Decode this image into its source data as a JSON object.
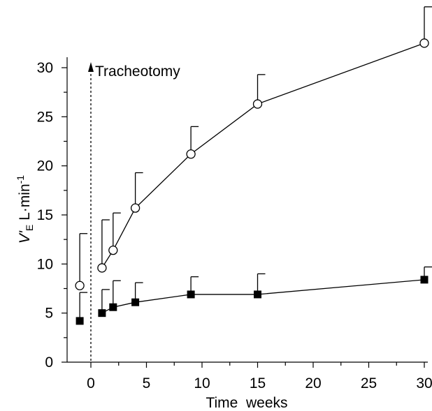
{
  "chart_data": {
    "type": "line",
    "title": "",
    "xlabel": "Time  weeks",
    "ylabel": {
      "v": "V'",
      "sub": "E",
      "unit": " L·min",
      "sup": "-1"
    },
    "xlim": [
      -2,
      30
    ],
    "ylim": [
      0,
      32
    ],
    "x_ticks": [
      0,
      5,
      10,
      15,
      20,
      25,
      30
    ],
    "y_ticks": [
      0,
      5,
      10,
      15,
      20,
      25,
      30
    ],
    "grid": false,
    "annotation": {
      "text": "Tracheotomy",
      "x": 0
    },
    "series": [
      {
        "marker": "open-circle",
        "x": [
          -1,
          1,
          2,
          4,
          9,
          15,
          30
        ],
        "y": [
          7.8,
          9.6,
          11.4,
          15.7,
          21.2,
          26.3,
          32.5
        ],
        "error": [
          5.3,
          4.9,
          3.8,
          3.6,
          2.8,
          3.0,
          3.7
        ]
      },
      {
        "marker": "filled-square",
        "x": [
          -1,
          1,
          2,
          4,
          9,
          15,
          30
        ],
        "y": [
          4.2,
          5.0,
          5.6,
          6.1,
          6.9,
          6.9,
          8.4
        ],
        "error": [
          2.9,
          2.4,
          2.7,
          2.0,
          1.8,
          2.1,
          1.3
        ]
      }
    ]
  }
}
